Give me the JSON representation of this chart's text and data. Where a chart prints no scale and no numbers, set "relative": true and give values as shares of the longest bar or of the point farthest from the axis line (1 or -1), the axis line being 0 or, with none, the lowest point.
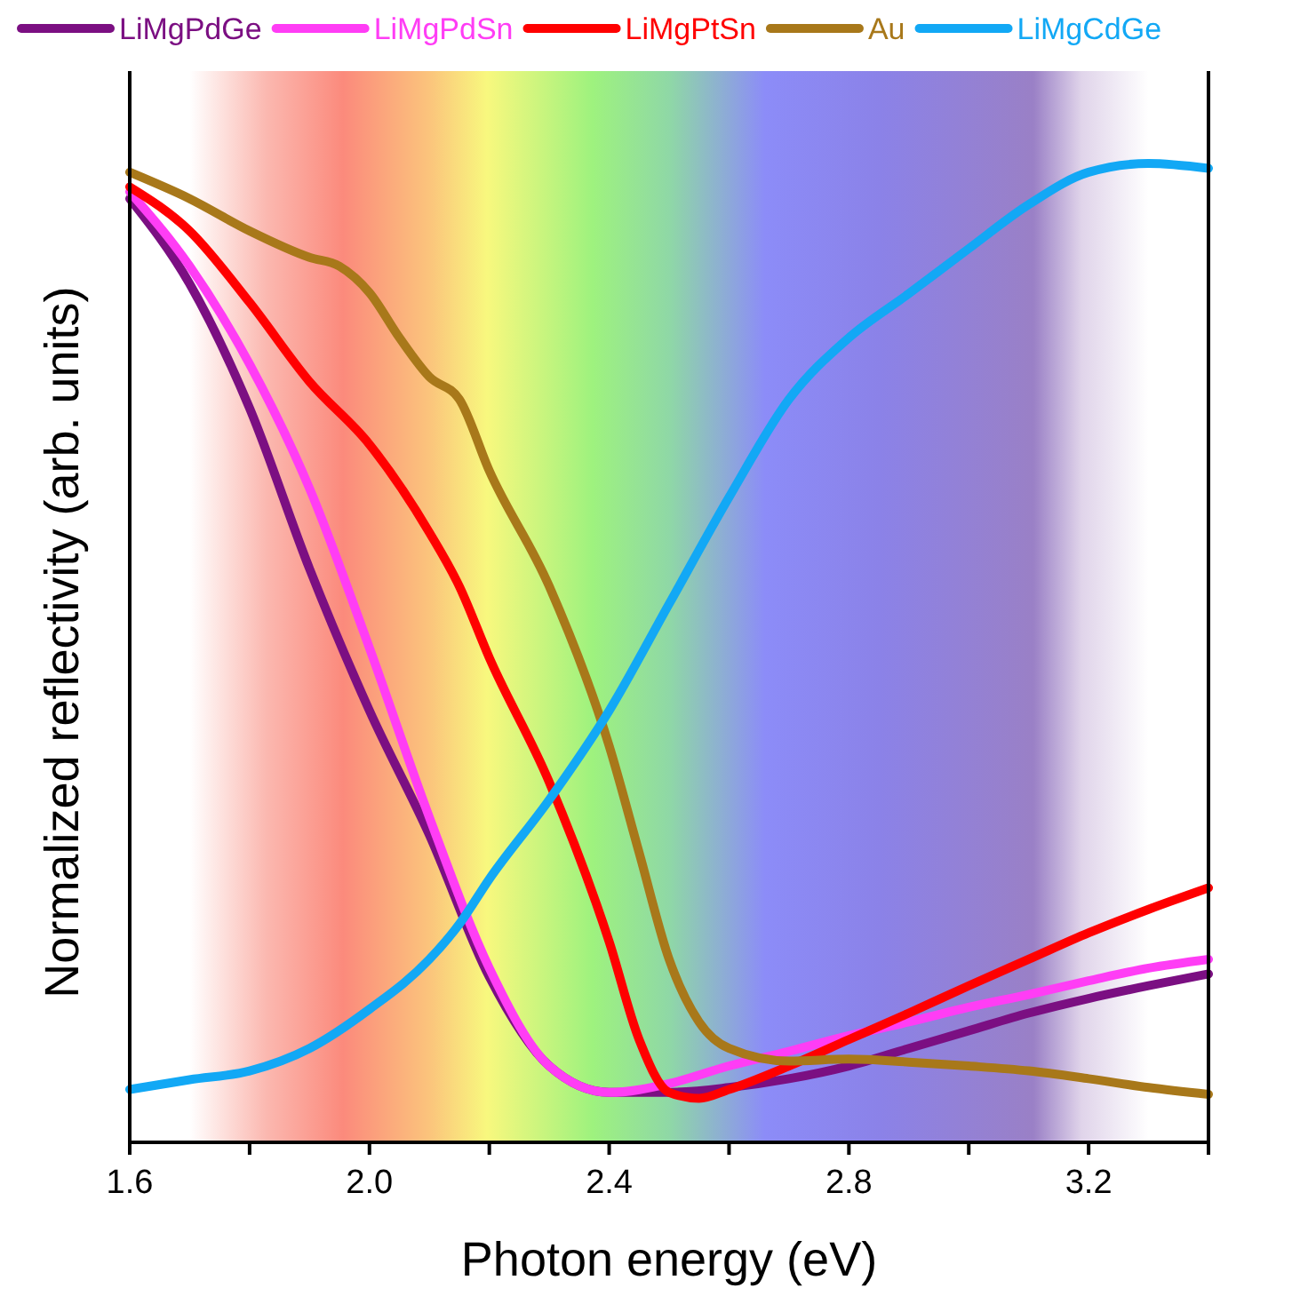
{
  "chart_data": {
    "type": "line",
    "relative": true,
    "xlabel": "Photon energy (eV)",
    "ylabel": "Normalized reflectivity (arb. units)",
    "xlim": [
      1.6,
      3.4
    ],
    "xticks": [
      1.6,
      {
        "value": 1.8,
        "label": null
      },
      {
        "value": 2.0,
        "label": "2.0"
      },
      {
        "value": 2.2,
        "label": null
      },
      2.4,
      {
        "value": 2.6,
        "label": null
      },
      2.8,
      {
        "value": 3.0,
        "label": null
      },
      3.2,
      {
        "value": 3.4,
        "label": null
      }
    ],
    "legend": "top",
    "grid": false,
    "line_style": "solid",
    "marker": "none",
    "bands": [
      {
        "axis": "x",
        "from": 1.7,
        "to": 3.3
      }
    ],
    "series": [
      {
        "name": "LiMgPdGe",
        "color": "#7b0f82",
        "x": [
          1.6,
          1.7,
          1.8,
          1.9,
          2.0,
          2.1,
          2.2,
          2.3,
          2.4,
          2.5,
          2.6,
          2.7,
          2.8,
          2.9,
          3.0,
          3.1,
          3.2,
          3.3,
          3.4
        ],
        "values": [
          0.964,
          0.877,
          0.75,
          0.586,
          0.441,
          0.314,
          0.169,
          0.078,
          0.051,
          0.051,
          0.056,
          0.065,
          0.078,
          0.096,
          0.114,
          0.132,
          0.147,
          0.16,
          0.172
        ]
      },
      {
        "name": "LiMgPdSn",
        "color": "#ff3df5",
        "x": [
          1.6,
          1.7,
          1.8,
          1.9,
          2.0,
          2.1,
          2.2,
          2.3,
          2.4,
          2.5,
          2.6,
          2.7,
          2.8,
          2.9,
          3.0,
          3.1,
          3.2,
          3.3,
          3.4
        ],
        "values": [
          0.971,
          0.895,
          0.795,
          0.668,
          0.505,
          0.332,
          0.178,
          0.078,
          0.051,
          0.06,
          0.078,
          0.093,
          0.109,
          0.123,
          0.138,
          0.151,
          0.165,
          0.178,
          0.187
        ]
      },
      {
        "name": "LiMgPtSn",
        "color": "#ff0000",
        "x": [
          1.6,
          1.7,
          1.8,
          1.9,
          2.0,
          2.1,
          2.15,
          2.2,
          2.3,
          2.4,
          2.45,
          2.5,
          2.55,
          2.6,
          2.7,
          2.8,
          2.9,
          3.0,
          3.1,
          3.2,
          3.3,
          3.4
        ],
        "values": [
          0.976,
          0.931,
          0.858,
          0.777,
          0.713,
          0.623,
          0.568,
          0.495,
          0.368,
          0.205,
          0.105,
          0.051,
          0.045,
          0.054,
          0.078,
          0.105,
          0.132,
          0.16,
          0.187,
          0.214,
          0.238,
          0.26
        ]
      },
      {
        "name": "Au",
        "color": "#a8781a",
        "x": [
          1.6,
          1.7,
          1.8,
          1.9,
          1.95,
          2.0,
          2.05,
          2.1,
          2.15,
          2.2,
          2.3,
          2.4,
          2.45,
          2.5,
          2.55,
          2.6,
          2.7,
          2.8,
          2.9,
          3.0,
          3.1,
          3.2,
          3.3,
          3.4
        ],
        "values": [
          0.991,
          0.964,
          0.931,
          0.904,
          0.895,
          0.868,
          0.822,
          0.782,
          0.759,
          0.686,
          0.568,
          0.405,
          0.296,
          0.187,
          0.123,
          0.096,
          0.083,
          0.085,
          0.082,
          0.078,
          0.073,
          0.065,
          0.056,
          0.049
        ]
      },
      {
        "name": "LiMgCdGe",
        "color": "#12a8f5",
        "x": [
          1.6,
          1.7,
          1.8,
          1.9,
          2.0,
          2.1,
          2.15,
          2.2,
          2.3,
          2.4,
          2.5,
          2.6,
          2.7,
          2.8,
          2.9,
          3.0,
          3.1,
          3.2,
          3.3,
          3.4
        ],
        "values": [
          0.054,
          0.064,
          0.073,
          0.096,
          0.136,
          0.187,
          0.223,
          0.269,
          0.35,
          0.441,
          0.55,
          0.659,
          0.759,
          0.822,
          0.867,
          0.913,
          0.958,
          0.991,
          1.0,
          0.995
        ]
      }
    ]
  }
}
